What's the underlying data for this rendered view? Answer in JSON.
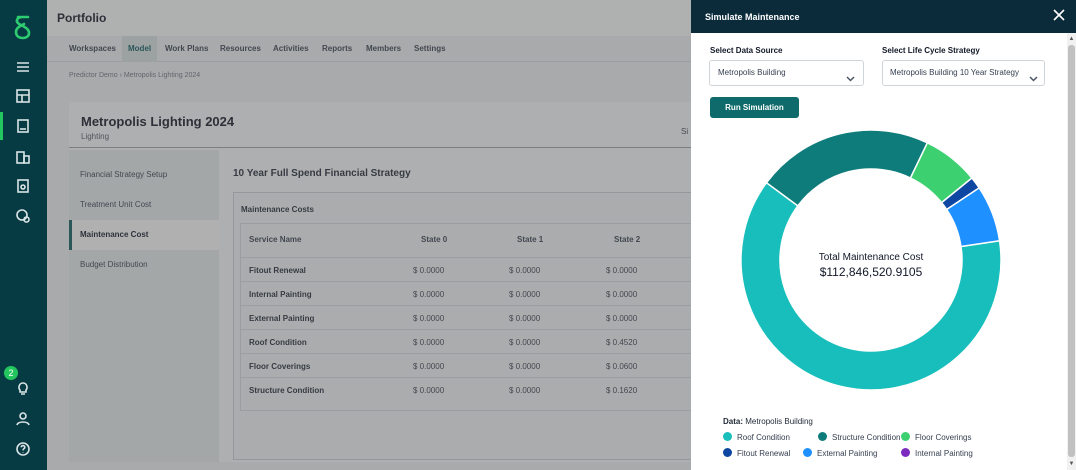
{
  "app": {
    "title": "Portfolio"
  },
  "rail": {
    "notification_count": "2"
  },
  "tabs": [
    "Workspaces",
    "Model",
    "Work Plans",
    "Resources",
    "Activities",
    "Reports",
    "Members",
    "Settings"
  ],
  "breadcrumb": "Predictor Demo › Metropolis Lighting 2024",
  "project": {
    "title": "Metropolis Lighting 2024",
    "subtitle": "Lighting",
    "trail": "Si"
  },
  "subnav": [
    "Financial Strategy Setup",
    "Treatment Unit Cost",
    "Maintenance Cost",
    "Budget Distribution"
  ],
  "strategy_title": "10 Year Full Spend Financial Strategy",
  "maintenance": {
    "title": "Maintenance Costs",
    "headers": [
      "Service Name",
      "State 0",
      "State 1",
      "State 2"
    ],
    "rows": [
      {
        "name": "Fitout Renewal",
        "s0": "$ 0.0000",
        "s1": "$ 0.0000",
        "s2": "$ 0.0000"
      },
      {
        "name": "Internal Painting",
        "s0": "$ 0.0000",
        "s1": "$ 0.0000",
        "s2": "$ 0.0000"
      },
      {
        "name": "External Painting",
        "s0": "$ 0.0000",
        "s1": "$ 0.0000",
        "s2": "$ 0.0000"
      },
      {
        "name": "Roof Condition",
        "s0": "$ 0.0000",
        "s1": "$ 0.0000",
        "s2": "$ 0.4520"
      },
      {
        "name": "Floor Coverings",
        "s0": "$ 0.0000",
        "s1": "$ 0.0000",
        "s2": "$ 0.0600"
      },
      {
        "name": "Structure Condition",
        "s0": "$ 0.0000",
        "s1": "$ 0.0000",
        "s2": "$ 0.1620"
      }
    ]
  },
  "modal": {
    "title": "Simulate Maintenance",
    "data_source_label": "Select Data Source",
    "data_source_value": "Metropolis Building",
    "strategy_label": "Select Life Cycle Strategy",
    "strategy_value": "Metropolis Building 10 Year Strategy",
    "run_label": "Run Simulation",
    "legend_prefix": "Data:",
    "legend_source": "Metropolis Building"
  },
  "chart_data": {
    "type": "pie",
    "center_label": "Total Maintenance Cost",
    "center_value": "$112,846,520.9105",
    "slices": [
      {
        "name": "Roof Condition",
        "value": 62.5,
        "color": "#17bebb"
      },
      {
        "name": "Structure Condition",
        "value": 22.0,
        "color": "#0e7c7b"
      },
      {
        "name": "Floor Coverings",
        "value": 7.0,
        "color": "#3cd070"
      },
      {
        "name": "Fitout Renewal",
        "value": 1.5,
        "color": "#0d47a1"
      },
      {
        "name": "External Painting",
        "value": 7.0,
        "color": "#1e90ff"
      },
      {
        "name": "Internal Painting",
        "value": 0.0,
        "color": "#7b2cbf"
      }
    ]
  }
}
